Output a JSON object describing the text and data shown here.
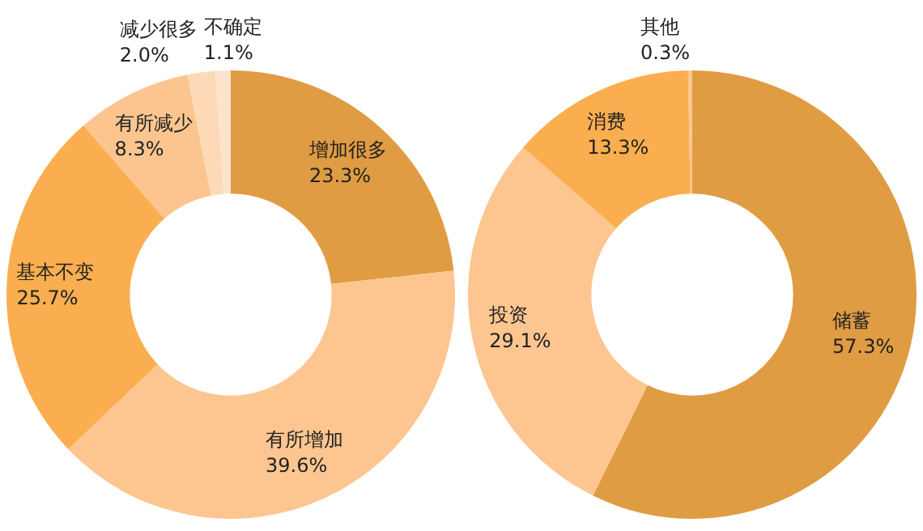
{
  "chart_data": [
    {
      "type": "donut",
      "categories": [
        "增加很多",
        "有所增加",
        "基本不变",
        "有所减少",
        "减少很多",
        "不确定"
      ],
      "values": [
        23.3,
        39.6,
        25.7,
        8.3,
        2.0,
        1.1
      ],
      "colors": [
        "#e09c42",
        "#fdc690",
        "#fbae4f",
        "#fcc590",
        "#fdd9b8",
        "#fde3cc"
      ],
      "value_labels": [
        "23.3%",
        "39.6%",
        "25.7%",
        "8.3%",
        "2.0%",
        "1.1%"
      ]
    },
    {
      "type": "donut",
      "categories": [
        "储蓄",
        "投资",
        "消费",
        "其他"
      ],
      "values": [
        57.3,
        29.1,
        13.3,
        0.3
      ],
      "colors": [
        "#e09c42",
        "#fdc690",
        "#fbae4f",
        "#fdc690"
      ],
      "value_labels": [
        "57.3%",
        "29.1%",
        "13.3%",
        "0.3%"
      ]
    }
  ]
}
